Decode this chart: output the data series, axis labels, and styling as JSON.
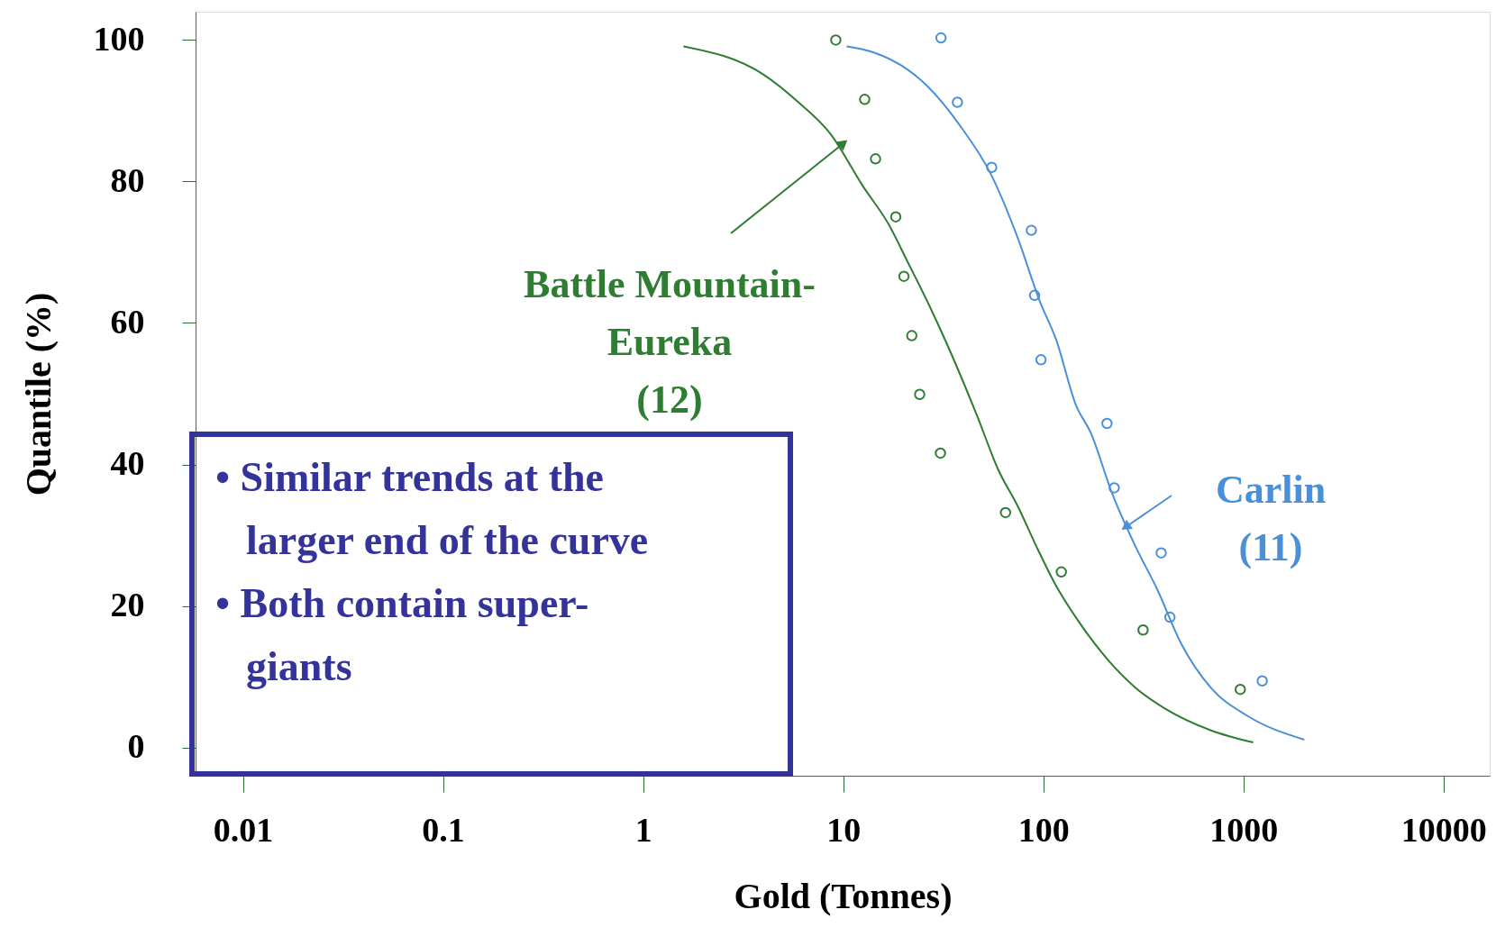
{
  "chart_data": {
    "type": "scatter",
    "xlabel": "Gold (Tonnes)",
    "ylabel": "Quantile (%)",
    "log": "x",
    "xlim": [
      0.0058,
      17000
    ],
    "xticks": [
      0.01,
      0.1,
      1,
      10,
      100,
      1000,
      10000
    ],
    "ylim": [
      -4,
      104
    ],
    "yticks": [
      0,
      20,
      40,
      60,
      80,
      100
    ],
    "grid": false,
    "series": [
      {
        "name": "Battle Mountain-\nEureka\n(12)",
        "marker": "circle",
        "color": "#2e7d32",
        "x": [
          9.18,
          12.8,
          14.5,
          18.3,
          20.1,
          22.0,
          24.1,
          30.6,
          64.7,
          123,
          315,
          964
        ],
        "values": [
          100,
          91.6,
          83.2,
          75.0,
          66.6,
          58.2,
          49.9,
          41.6,
          33.2,
          24.8,
          16.6,
          8.2
        ]
      },
      {
        "name": "Carlin\n(11)",
        "marker": "circle",
        "color": "#4a8fd8",
        "x": [
          30.8,
          37.2,
          55.2,
          87.1,
          90.4,
          97.3,
          208,
          226,
          388,
          429,
          1241
        ],
        "values": [
          100.3,
          91.2,
          82.0,
          73.1,
          63.9,
          54.8,
          45.8,
          36.7,
          27.5,
          18.4,
          9.4
        ]
      },
      {
        "type": "line",
        "color": "#2e7d32",
        "x": [
          1.59,
          4.0,
          5.97,
          8.65,
          12.5,
          16.9,
          21.1,
          27.3,
          32.9,
          41.1,
          46.5,
          59.2,
          75.4,
          92.7,
          114,
          151,
          213,
          290,
          410,
          689,
          1119
        ],
        "values": [
          99.1,
          95.1,
          91.2,
          86.7,
          79.4,
          73.9,
          68.5,
          62.1,
          57.1,
          50.7,
          47.0,
          39.4,
          33.8,
          28.3,
          23.2,
          17.7,
          12.2,
          8.4,
          5.4,
          2.4,
          0.7
        ]
      },
      {
        "type": "line",
        "color": "#4a8fd8",
        "x": [
          10.4,
          14.0,
          21.0,
          26.3,
          38.1,
          55.2,
          74.3,
          96.2,
          116,
          145,
          173,
          220,
          290,
          370,
          488,
          689,
          1042,
          2014
        ],
        "values": [
          99.1,
          98.3,
          95.8,
          93.5,
          88.0,
          80.8,
          72.1,
          63.0,
          57.6,
          48.5,
          44.4,
          36.0,
          28.3,
          22.4,
          14.7,
          8.4,
          4.5,
          1.1
        ]
      }
    ],
    "annotations": [
      "• Similar trends at the\nlarger end of the curve",
      "• Both contain super-\ngiants"
    ]
  }
}
